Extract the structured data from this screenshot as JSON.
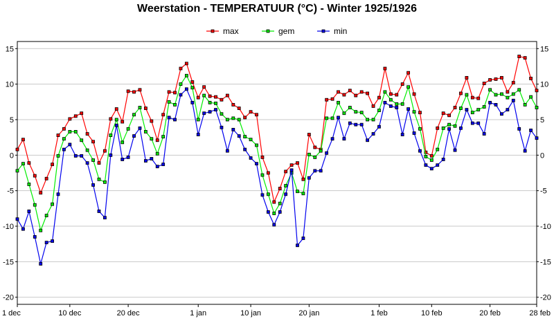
{
  "chart_data": {
    "type": "line",
    "title": "Weerstation  -  TEMPERATUUR (°C)  -  Winter 1925/1926",
    "ylim": [
      -21,
      16
    ],
    "y_ticks": [
      -20,
      -15,
      -10,
      -5,
      0,
      5,
      10,
      15
    ],
    "grid": true,
    "legend_position": "top-center",
    "x_ticks": [
      {
        "day": 0,
        "label": "1 dec"
      },
      {
        "day": 9,
        "label": "10 dec"
      },
      {
        "day": 19,
        "label": "20 dec"
      },
      {
        "day": 31,
        "label": "1 jan"
      },
      {
        "day": 40,
        "label": "10 jan"
      },
      {
        "day": 50,
        "label": "20 jan"
      },
      {
        "day": 62,
        "label": "1 feb"
      },
      {
        "day": 71,
        "label": "10 feb"
      },
      {
        "day": 81,
        "label": "20 feb"
      },
      {
        "day": 89,
        "label": "28 feb"
      }
    ],
    "series": [
      {
        "name": "max",
        "color": "#ff0000",
        "values": [
          0.8,
          2.2,
          -1.1,
          -2.9,
          -5.3,
          -3.3,
          -1.3,
          2.8,
          3.7,
          5.1,
          5.5,
          5.9,
          3.0,
          1.9,
          -1.1,
          0.6,
          5.1,
          6.5,
          4.7,
          9.0,
          8.9,
          9.2,
          6.6,
          4.8,
          2.1,
          5.7,
          8.9,
          8.8,
          12.2,
          12.9,
          10.3,
          8.1,
          9.6,
          8.3,
          8.2,
          7.8,
          8.4,
          7.1,
          6.6,
          5.3,
          6.1,
          5.7,
          -0.3,
          -2.5,
          -6.6,
          -4.7,
          -2.3,
          -1.4,
          -1.1,
          -3.4,
          2.9,
          1.1,
          0.8,
          7.8,
          7.9,
          8.9,
          8.5,
          9.1,
          8.4,
          8.9,
          8.7,
          6.9,
          8.1,
          12.2,
          8.6,
          8.5,
          10.0,
          11.6,
          8.6,
          6.0,
          0.4,
          -0.1,
          3.8,
          5.9,
          5.6,
          6.7,
          8.7,
          10.9,
          8.1,
          8.0,
          10.1,
          10.6,
          10.7,
          10.9,
          8.9,
          10.2,
          13.9,
          13.7,
          10.8,
          9.1
        ]
      },
      {
        "name": "gem",
        "color": "#00ee00",
        "values": [
          -2.2,
          -1.2,
          -4.1,
          -7.0,
          -10.6,
          -8.5,
          -6.9,
          -0.1,
          2.3,
          3.3,
          3.3,
          2.1,
          0.7,
          -0.7,
          -3.4,
          -3.8,
          2.8,
          5.0,
          1.8,
          3.7,
          5.7,
          6.7,
          3.3,
          2.3,
          0.2,
          2.6,
          7.5,
          7.1,
          10.0,
          11.2,
          9.5,
          5.0,
          8.4,
          7.4,
          7.3,
          5.8,
          5.0,
          5.2,
          5.0,
          2.6,
          2.2,
          1.4,
          -2.8,
          -5.5,
          -8.2,
          -6.8,
          -4.3,
          -2.5,
          -5.1,
          -5.4,
          0.1,
          -0.3,
          0.6,
          5.2,
          5.2,
          7.4,
          5.9,
          6.7,
          6.1,
          6.0,
          5.0,
          5.0,
          6.3,
          8.9,
          7.8,
          7.2,
          7.2,
          9.6,
          6.1,
          3.7,
          -0.2,
          -0.7,
          0.8,
          3.8,
          4.3,
          4.1,
          6.6,
          8.5,
          6.0,
          6.4,
          6.8,
          9.2,
          8.5,
          8.6,
          8.1,
          8.6,
          9.2,
          7.1,
          8.2,
          6.7
        ]
      },
      {
        "name": "min",
        "color": "#0000ee",
        "values": [
          -9.0,
          -10.4,
          -7.9,
          -11.5,
          -15.3,
          -12.3,
          -12.1,
          -5.5,
          0.8,
          1.5,
          -0.1,
          -0.1,
          -1.1,
          -4.2,
          -7.9,
          -8.8,
          0.0,
          4.2,
          -0.6,
          -0.3,
          2.7,
          3.8,
          -0.8,
          -0.5,
          -1.6,
          -1.3,
          5.3,
          5.0,
          8.5,
          9.3,
          7.4,
          2.9,
          5.9,
          6.1,
          6.4,
          3.9,
          0.6,
          3.6,
          2.7,
          0.8,
          -0.4,
          -1.2,
          -5.6,
          -8.0,
          -9.8,
          -8.0,
          -5.5,
          -2.1,
          -12.7,
          -11.7,
          -3.2,
          -2.2,
          -2.2,
          0.3,
          2.3,
          5.3,
          2.3,
          4.5,
          4.3,
          4.3,
          2.1,
          3.0,
          4.0,
          7.4,
          6.9,
          6.7,
          2.9,
          6.5,
          3.1,
          0.6,
          -1.4,
          -1.9,
          -1.4,
          -0.6,
          3.7,
          0.7,
          3.8,
          6.4,
          4.5,
          4.5,
          3.0,
          7.4,
          7.1,
          5.8,
          6.4,
          7.7,
          3.7,
          0.6,
          3.5,
          2.4
        ]
      }
    ]
  }
}
